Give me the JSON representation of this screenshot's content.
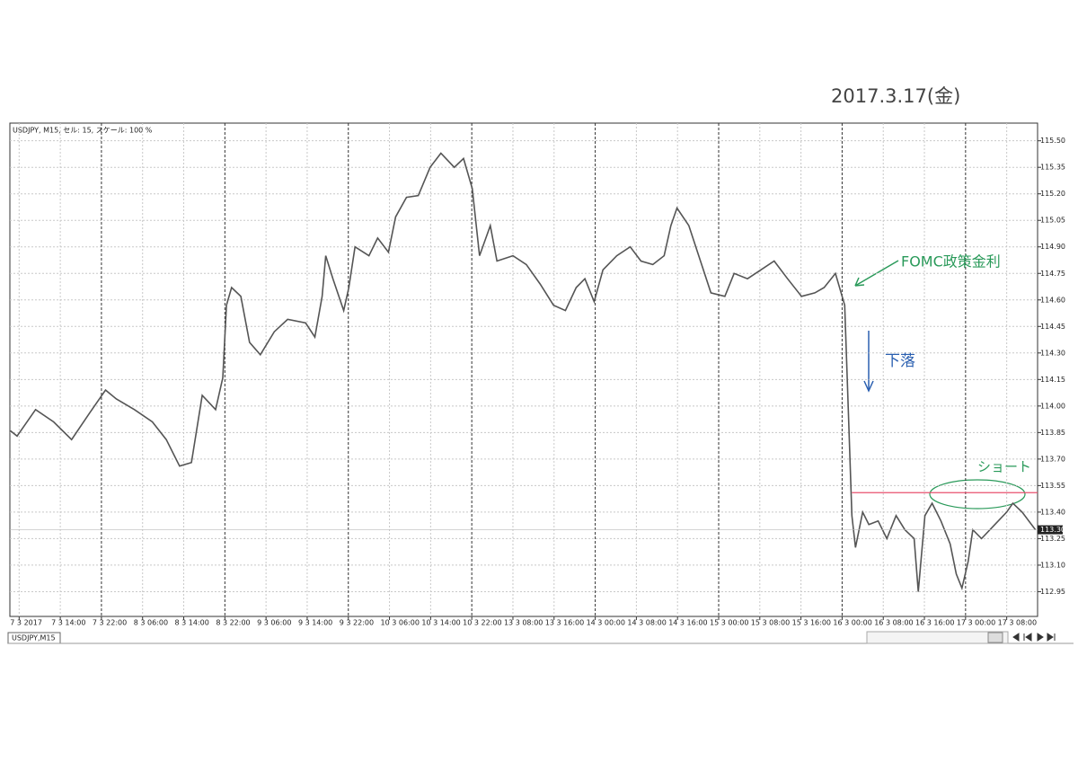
{
  "chart_data": {
    "type": "line",
    "header": "USDJPY, M15, セル: 15, スケール: 100 %",
    "tab": "USDJPY,M15",
    "annotations": [
      "2017.3.17(金)",
      "FOMC政策金利",
      "下落",
      "ショート"
    ],
    "color": "#555555",
    "grid": true,
    "xlim": [
      -1.8,
      198
    ],
    "ylim": [
      112.81,
      115.6
    ],
    "xticks": [
      {
        "value": 0,
        "label": "7 3 2017"
      },
      {
        "value": 8,
        "label": "7 3 14:00"
      },
      {
        "value": 16,
        "label": "7 3 22:00"
      },
      {
        "value": 24,
        "label": "8 3 06:00"
      },
      {
        "value": 32,
        "label": "8 3 14:00"
      },
      {
        "value": 40,
        "label": "8 3 22:00"
      },
      {
        "value": 48,
        "label": "9 3 06:00"
      },
      {
        "value": 56,
        "label": "9 3 14:00"
      },
      {
        "value": 64,
        "label": "9 3 22:00"
      },
      {
        "value": 72,
        "label": "10 3 06:00"
      },
      {
        "value": 80,
        "label": "10 3 14:00"
      },
      {
        "value": 88,
        "label": "10 3 22:00"
      },
      {
        "value": 96,
        "label": "13 3 08:00"
      },
      {
        "value": 104,
        "label": "13 3 16:00"
      },
      {
        "value": 112,
        "label": "14 3 00:00"
      },
      {
        "value": 120,
        "label": "14 3 08:00"
      },
      {
        "value": 128,
        "label": "14 3 16:00"
      },
      {
        "value": 136,
        "label": "15 3 00:00"
      },
      {
        "value": 144,
        "label": "15 3 08:00"
      },
      {
        "value": 152,
        "label": "15 3 16:00"
      },
      {
        "value": 160,
        "label": "16 3 00:00"
      },
      {
        "value": 168,
        "label": "16 3 08:00"
      },
      {
        "value": 176,
        "label": "16 3 16:00"
      },
      {
        "value": 184,
        "label": "17 3 00:00"
      },
      {
        "value": 192,
        "label": "17 3 08:00"
      }
    ],
    "yticks": [
      112.95,
      {
        "value": 113.1,
        "label": "113.10"
      },
      113.25,
      {
        "value": 113.4,
        "label": "113.40"
      },
      113.55,
      {
        "value": 113.7,
        "label": "113.70"
      },
      113.85,
      {
        "value": 114,
        "label": "114.00"
      },
      114.15,
      {
        "value": 114.3,
        "label": "114.30"
      },
      114.45,
      {
        "value": 114.6,
        "label": "114.60"
      },
      114.75,
      {
        "value": 114.9,
        "label": "114.90"
      },
      115.05,
      {
        "value": 115.2,
        "label": "115.20"
      },
      115.35,
      {
        "value": 115.5,
        "label": "115.50"
      }
    ],
    "x": [
      -1.7,
      -0.4,
      3.2,
      6.7,
      10.2,
      13.7,
      16.8,
      18.9,
      22.4,
      25.9,
      28.6,
      31.2,
      33.5,
      35.6,
      38.2,
      39.6,
      40.3,
      41.3,
      43.1,
      44.8,
      46.9,
      49.6,
      52.2,
      55.7,
      57.5,
      58.9,
      59.6,
      61.0,
      63.1,
      64.1,
      65.3,
      68.0,
      69.7,
      71.8,
      73.2,
      75.3,
      77.6,
      79.9,
      82.0,
      84.6,
      86.4,
      88.1,
      89.5,
      91.6,
      92.9,
      96.0,
      98.6,
      101.3,
      103.9,
      106.2,
      108.3,
      110.0,
      111.8,
      113.5,
      116.2,
      118.8,
      120.9,
      123.2,
      125.4,
      126.7,
      127.9,
      130.2,
      131.9,
      134.5,
      137.2,
      139.0,
      141.6,
      144.2,
      146.8,
      149.4,
      152.1,
      154.7,
      156.5,
      158.7,
      160.5,
      161.2,
      161.9,
      162.6,
      164.0,
      165.2,
      167.0,
      168.7,
      170.5,
      172.2,
      174.0,
      174.8,
      176.1,
      177.5,
      179.2,
      181.0,
      182.2,
      183.3,
      184.5,
      185.4,
      187.1,
      189.7,
      192.0,
      193.2,
      195.0,
      197.6
    ],
    "values": [
      113.86,
      113.83,
      113.98,
      113.91,
      113.81,
      113.96,
      114.09,
      114.04,
      113.98,
      113.91,
      113.81,
      113.66,
      113.68,
      114.06,
      113.98,
      114.16,
      114.57,
      114.67,
      114.62,
      114.36,
      114.29,
      114.42,
      114.49,
      114.47,
      114.39,
      114.62,
      114.85,
      114.72,
      114.54,
      114.67,
      114.9,
      114.85,
      114.95,
      114.87,
      115.07,
      115.18,
      115.19,
      115.35,
      115.43,
      115.35,
      115.4,
      115.23,
      114.85,
      115.02,
      114.82,
      114.85,
      114.8,
      114.69,
      114.57,
      114.54,
      114.67,
      114.72,
      114.59,
      114.77,
      114.85,
      114.9,
      114.82,
      114.8,
      114.85,
      115.02,
      115.12,
      115.02,
      114.87,
      114.64,
      114.62,
      114.75,
      114.72,
      114.77,
      114.82,
      114.72,
      114.62,
      114.64,
      114.67,
      114.75,
      114.57,
      113.98,
      113.38,
      113.2,
      113.4,
      113.33,
      113.35,
      113.25,
      113.38,
      113.3,
      113.25,
      112.95,
      113.38,
      113.45,
      113.35,
      113.22,
      113.05,
      112.97,
      113.12,
      113.3,
      113.25,
      113.33,
      113.4,
      113.45,
      113.4,
      113.3
    ],
    "last_price": {
      "value": 113.3,
      "label": "113.30"
    },
    "short_line": {
      "value": 113.51,
      "color": "#e8506e"
    }
  }
}
